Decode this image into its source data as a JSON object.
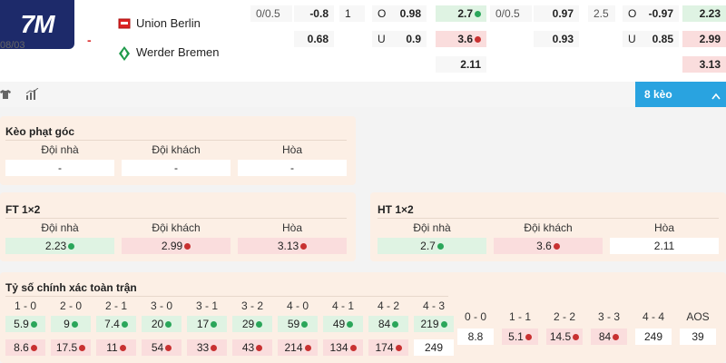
{
  "logo": "7M",
  "date": "08/03",
  "match_dash": "-",
  "teams": [
    "Union Berlin",
    "Werder Bremen"
  ],
  "odds_row1": [
    "0/0.5",
    "-0.8",
    "1",
    "O",
    "0.98",
    "2.7",
    "0/0.5",
    "0.97",
    "2.5",
    "O",
    "-0.97",
    "2.23"
  ],
  "odds_row2": [
    "0.68",
    "U",
    "0.9",
    "3.6",
    "0.93",
    "U",
    "0.85",
    "2.99"
  ],
  "odds_row3": [
    "2.11",
    "3.13"
  ],
  "toolbar": {
    "more_button": "8 kèo"
  },
  "corner": {
    "title": "Kèo phạt góc",
    "headers": [
      "Đội nhà",
      "Đội khách",
      "Hòa"
    ],
    "values": [
      "-",
      "-",
      "-"
    ]
  },
  "ft": {
    "title": "FT 1×2",
    "headers": [
      "Đội nhà",
      "Đội khách",
      "Hòa"
    ],
    "values": [
      "2.23",
      "2.99",
      "3.13"
    ]
  },
  "ht": {
    "title": "HT 1×2",
    "headers": [
      "Đội nhà",
      "Đội khách",
      "Hòa"
    ],
    "values": [
      "2.7",
      "3.6",
      "2.11"
    ]
  },
  "correct": {
    "title": "Tỷ số chính xác toàn trận",
    "home_scores": [
      "1 - 0",
      "2 - 0",
      "2 - 1",
      "3 - 0",
      "3 - 1",
      "3 - 2",
      "4 - 0",
      "4 - 1",
      "4 - 2",
      "4 - 3"
    ],
    "home_vals": [
      "5.9",
      "9",
      "7.4",
      "20",
      "17",
      "29",
      "59",
      "49",
      "84",
      "219"
    ],
    "away_vals": [
      "8.6",
      "17.5",
      "11",
      "54",
      "33",
      "43",
      "214",
      "134",
      "174",
      "249"
    ],
    "draw_scores": [
      "0 - 0",
      "1 - 1",
      "2 - 2",
      "3 - 3",
      "4 - 4",
      "AOS"
    ],
    "draw_vals": [
      "8.8",
      "5.1",
      "14.5",
      "84",
      "249",
      "39"
    ]
  }
}
